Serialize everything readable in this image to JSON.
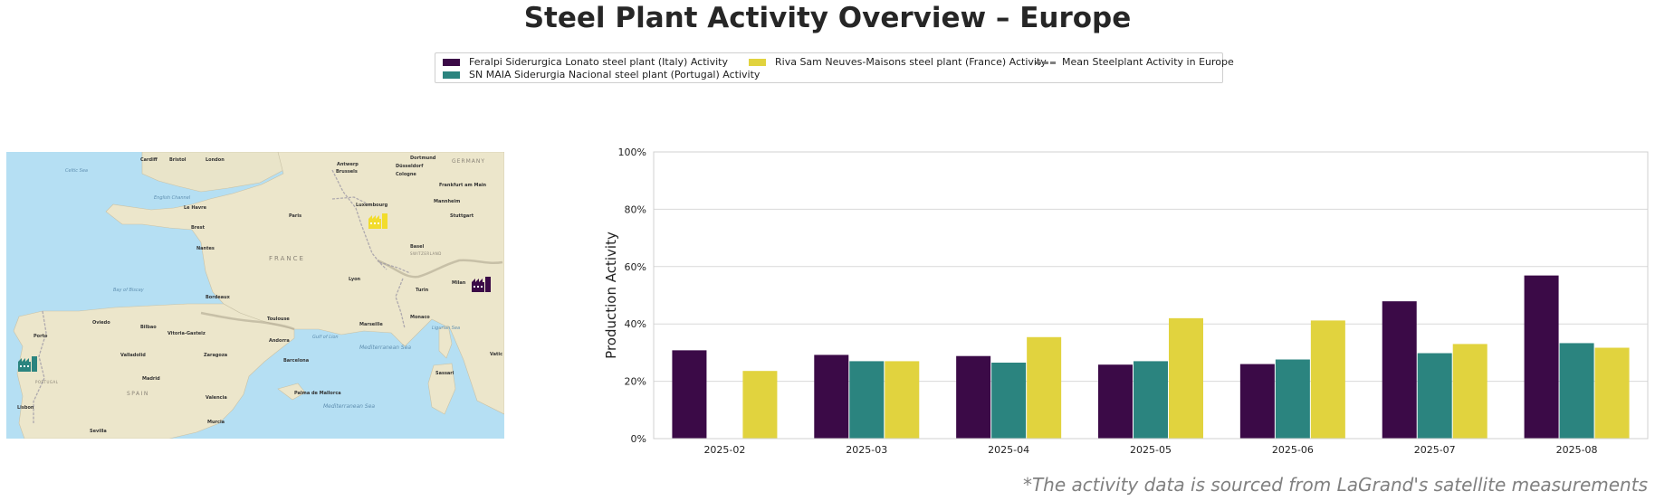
{
  "title": "Steel Plant Activity Overview – Europe",
  "footer_note": "*The activity data is sourced from LaGrand's satellite measurements",
  "legend": [
    {
      "label": "Feralpi Siderurgica Lonato steel plant (Italy) Activity",
      "color": "#3b0a47",
      "kind": "swatch"
    },
    {
      "label": "SN MAIA Siderurgia Nacional steel plant (Portugal) Activity",
      "color": "#2b847f",
      "kind": "swatch"
    },
    {
      "label": "Riva Sam Neuves-Maisons steel plant (France) Activity",
      "color": "#e1d33e",
      "kind": "swatch"
    },
    {
      "label": "Mean Steelplant Activity in Europe",
      "color": "#808080",
      "kind": "dash"
    }
  ],
  "map": {
    "labels": {
      "cardiff": "Cardiff",
      "bristol": "Bristol",
      "london": "London",
      "celtic_sea": "Celtic Sea",
      "english_channel": "English Channel",
      "antwerp": "Antwerp",
      "brussels": "Brussels",
      "dusseldorf": "Düsseldorf",
      "dortmund": "Dortmund",
      "germany": "GERMANY",
      "cologne": "Cologne",
      "frankfurt": "Frankfurt am Main",
      "luxembourg": "Luxembourg",
      "mannheim": "Mannheim",
      "stuttgart": "Stuttgart",
      "le_havre": "Le Havre",
      "paris": "Paris",
      "brest": "Brest",
      "nantes": "Nantes",
      "france": "FRANCE",
      "basel": "Basel",
      "switzerland": "SWITZERLAND",
      "lyon": "Lyon",
      "milan": "Milan",
      "turin": "Turin",
      "bay_of_biscay": "Bay of Biscay",
      "bordeaux": "Bordeaux",
      "toulouse": "Toulouse",
      "marseille": "Marseille",
      "monaco": "Monaco",
      "gulf_of_lion": "Gulf of Lion",
      "ligurian_sea": "Ligurian Sea",
      "oviedo": "Oviedo",
      "bilbao": "Bilbao",
      "vitoria": "Vitoria-Gasteiz",
      "andorra": "Andorra",
      "valladolid": "Valladolid",
      "zaragoza": "Zaragoza",
      "barcelona": "Barcelona",
      "madrid": "Madrid",
      "spain": "SPAIN",
      "valencia": "Valencia",
      "porto": "Porto",
      "portugal": "PORTUGAL",
      "lisbon": "Lisbon",
      "palma": "Palma de Mallorca",
      "mediterranean_sea": "Mediterranean Sea",
      "med_sea_2": "Mediterranean Sea",
      "sassari": "Sassari",
      "murcia": "Murcia",
      "seville": "Sevilla",
      "vatican": "Vatic"
    },
    "markers": [
      {
        "name": "Feralpi Siderurgica Lonato",
        "color": "#3b0a47",
        "icon": "factory-icon"
      },
      {
        "name": "SN MAIA Siderurgia Nacional",
        "color": "#2b847f",
        "icon": "factory-icon"
      },
      {
        "name": "Riva Sam Neuves-Maisons",
        "color": "#f2dc2c",
        "icon": "factory-icon"
      }
    ]
  },
  "chart_data": {
    "type": "bar",
    "ylabel": "Production Activity",
    "xlabel": "",
    "ylim": [
      0,
      100
    ],
    "yticks": [
      0,
      20,
      40,
      60,
      80,
      100
    ],
    "ytick_labels": [
      "0%",
      "20%",
      "40%",
      "60%",
      "80%",
      "100%"
    ],
    "grid": true,
    "categories": [
      "2025-02",
      "2025-03",
      "2025-04",
      "2025-05",
      "2025-06",
      "2025-07",
      "2025-08"
    ],
    "series": [
      {
        "name": "Feralpi Siderurgica Lonato steel plant (Italy) Activity",
        "color": "#3b0a47",
        "values": [
          30.8,
          29.2,
          28.8,
          25.8,
          26.0,
          47.9,
          56.9
        ]
      },
      {
        "name": "SN MAIA Siderurgia Nacional steel plant (Portugal) Activity",
        "color": "#2b847f",
        "values": [
          null,
          27.0,
          26.5,
          27.0,
          27.6,
          29.8,
          33.3
        ]
      },
      {
        "name": "Riva Sam Neuves-Maisons steel plant (France) Activity",
        "color": "#e1d33e",
        "values": [
          23.6,
          27.0,
          35.4,
          42.0,
          41.2,
          33.0,
          31.7
        ]
      }
    ]
  }
}
